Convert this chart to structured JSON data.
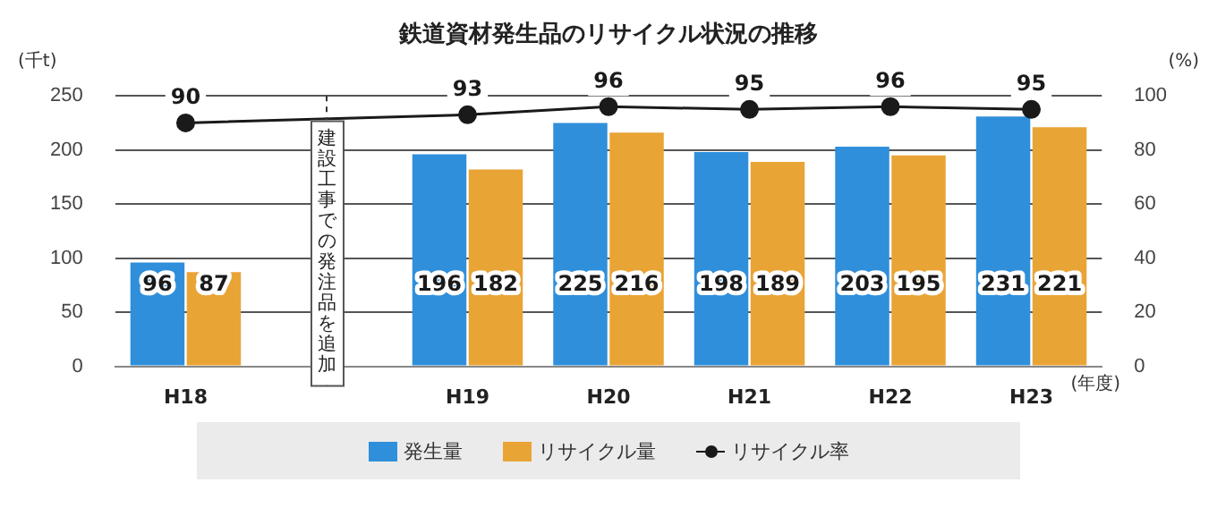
{
  "chart_data": {
    "type": "bar",
    "title": "鉄道資材発生品のリサイクル状況の推移",
    "xlabel": "(年度)",
    "ylabel": "(千t)",
    "y2label": "(%)",
    "categories": [
      "H18",
      null,
      "H19",
      "H20",
      "H21",
      "H22",
      "H23"
    ],
    "series": [
      {
        "name": "発生量",
        "color": "#2f8fdb",
        "values": [
          96,
          null,
          196,
          225,
          198,
          203,
          231
        ]
      },
      {
        "name": "リサイクル量",
        "color": "#e9a436",
        "values": [
          87,
          null,
          182,
          216,
          189,
          195,
          221
        ]
      },
      {
        "name": "リサイクル率",
        "type": "line",
        "axis": "y2",
        "color": "#1a1a1a",
        "values": [
          90,
          null,
          93,
          96,
          95,
          96,
          95
        ]
      }
    ],
    "ylim": [
      0,
      250
    ],
    "yticks": [
      0,
      50,
      100,
      150,
      200,
      250
    ],
    "y2lim": [
      0,
      100
    ],
    "y2ticks": [
      0,
      20,
      40,
      60,
      80,
      100
    ],
    "grid": "y",
    "legend": "bottom",
    "marker": "circle",
    "data_labels": true,
    "annotations": [
      "建設工事での発注品を追加"
    ]
  }
}
